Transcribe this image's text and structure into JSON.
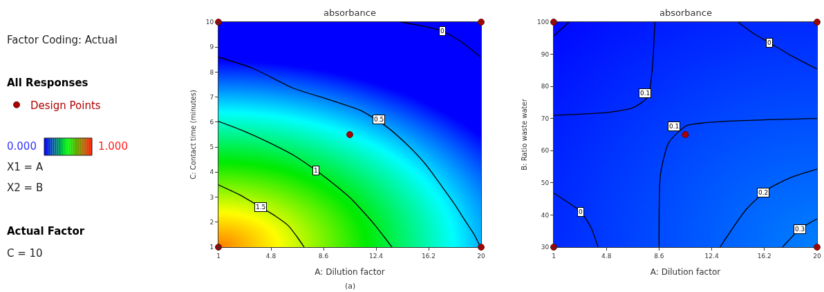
{
  "chart_data": [
    {
      "type": "other",
      "annotations": [
        "Factor Coding: Actual",
        "All Responses",
        "0.000",
        "1.000",
        "X1 = A",
        "X2 = B",
        "Actual Factor",
        "C = 10"
      ]
    },
    {
      "type": "line",
      "title": "absorbance",
      "xlabel": "A: Dilution factor",
      "ylabel": "C: Contact time (minutes)",
      "xlim": [
        1,
        20
      ],
      "xticks": [
        1,
        4.8,
        8.6,
        12.4,
        16.2,
        20
      ],
      "ylim": [
        1,
        10
      ],
      "yticks": [
        1,
        2,
        3,
        4,
        5,
        6,
        7,
        8,
        9,
        10
      ],
      "series": [
        {
          "color": "#000000",
          "x": [
            14.2,
            15.7,
            17.2,
            18.6,
            19.95
          ],
          "values": [
            10,
            9.85,
            9.64,
            9.2,
            8.6
          ]
        },
        {
          "color": "#000000",
          "x": [
            1,
            3.5,
            6.35,
            9,
            11.35,
            13.2,
            14.7,
            16,
            17.2,
            18.1,
            18.85,
            19.5,
            19.95
          ],
          "values": [
            8.6,
            8.15,
            7.37,
            6.9,
            6.45,
            5.8,
            5.07,
            4.3,
            3.4,
            2.7,
            2.05,
            1.5,
            1
          ]
        },
        {
          "color": "#000000",
          "x": [
            1,
            2.8,
            4.7,
            6.5,
            8.05,
            9.4,
            10.55,
            11.5,
            12.35,
            13.0,
            13.55
          ],
          "values": [
            6.03,
            5.65,
            5.17,
            4.65,
            4.07,
            3.5,
            2.96,
            2.4,
            1.86,
            1.4,
            1
          ]
        },
        {
          "color": "#000000",
          "x": [
            1,
            2.5,
            4.05,
            5.1,
            6.05,
            6.7,
            7.2
          ],
          "values": [
            3.49,
            3.1,
            2.6,
            2.25,
            1.86,
            1.4,
            1
          ]
        },
        {
          "type": "scatter",
          "name": "Design Points",
          "color": "#b00000",
          "marker": "circle",
          "x": [
            1,
            1,
            20,
            20,
            10.5
          ],
          "values": [
            1,
            10,
            10,
            1,
            5.5
          ]
        }
      ],
      "legend": "left",
      "grid": false,
      "annotations": [
        {
          "text": "0",
          "x": 17.2,
          "y": 9.64
        },
        {
          "text": "0.5",
          "x": 12.6,
          "y": 6.1
        },
        {
          "text": "1",
          "x": 8.05,
          "y": 4.07
        },
        {
          "text": "1.5",
          "x": 4.05,
          "y": 2.6
        },
        "(a)"
      ]
    },
    {
      "type": "line",
      "title": "absorbance",
      "xlabel": "A: Dilution factor",
      "ylabel": "B: Ratio waste water",
      "xlim": [
        1,
        20
      ],
      "xticks": [
        1,
        4.8,
        8.6,
        12.4,
        16.2,
        20
      ],
      "ylim": [
        30,
        100
      ],
      "yticks": [
        30,
        40,
        50,
        60,
        70,
        80,
        90,
        100
      ],
      "series": [
        {
          "color": "#000000",
          "x": [
            14.3,
            15.4,
            16.55,
            18.25,
            20
          ],
          "values": [
            100,
            96.5,
            93.6,
            89.3,
            85.4
          ]
        },
        {
          "color": "#000000",
          "x": [
            1,
            2.1
          ],
          "values": [
            95.7,
            100
          ]
        },
        {
          "color": "#000000",
          "x": [
            1,
            4.9,
            6.6,
            7.3,
            7.8,
            8.1,
            8.3
          ],
          "values": [
            71,
            71.9,
            73.2,
            74.8,
            76.8,
            84.8,
            100
          ]
        },
        {
          "color": "#000000",
          "x": [
            8.6,
            8.7,
            9.3,
            10.6,
            13.3,
            20
          ],
          "values": [
            30,
            52.6,
            62.5,
            67.8,
            69.1,
            70
          ]
        },
        {
          "color": "#000000",
          "x": [
            1,
            2.95,
            3.7,
            4.2
          ],
          "values": [
            46.8,
            41,
            36,
            30
          ]
        },
        {
          "color": "#000000",
          "x": [
            13,
            14.9,
            16.55,
            18.2,
            20
          ],
          "values": [
            30,
            41.8,
            48.3,
            51.8,
            54.3
          ]
        },
        {
          "color": "#000000",
          "x": [
            17.5,
            18.75,
            20
          ],
          "values": [
            30,
            35.6,
            38.8
          ]
        },
        {
          "type": "scatter",
          "color": "#b00000",
          "marker": "circle",
          "x": [
            1,
            1,
            20,
            20,
            10.5
          ],
          "values": [
            30,
            100,
            100,
            30,
            65
          ]
        }
      ],
      "grid": false,
      "annotations": [
        {
          "text": "0",
          "x": 16.55,
          "y": 93.6
        },
        {
          "text": "0.1",
          "x": 7.6,
          "y": 77.9
        },
        {
          "text": "0.1",
          "x": 9.7,
          "y": 67.6
        },
        {
          "text": "0",
          "x": 2.95,
          "y": 41
        },
        {
          "text": "0.2",
          "x": 16.1,
          "y": 46.9
        },
        {
          "text": "0.3",
          "x": 18.75,
          "y": 35.6
        }
      ]
    }
  ]
}
